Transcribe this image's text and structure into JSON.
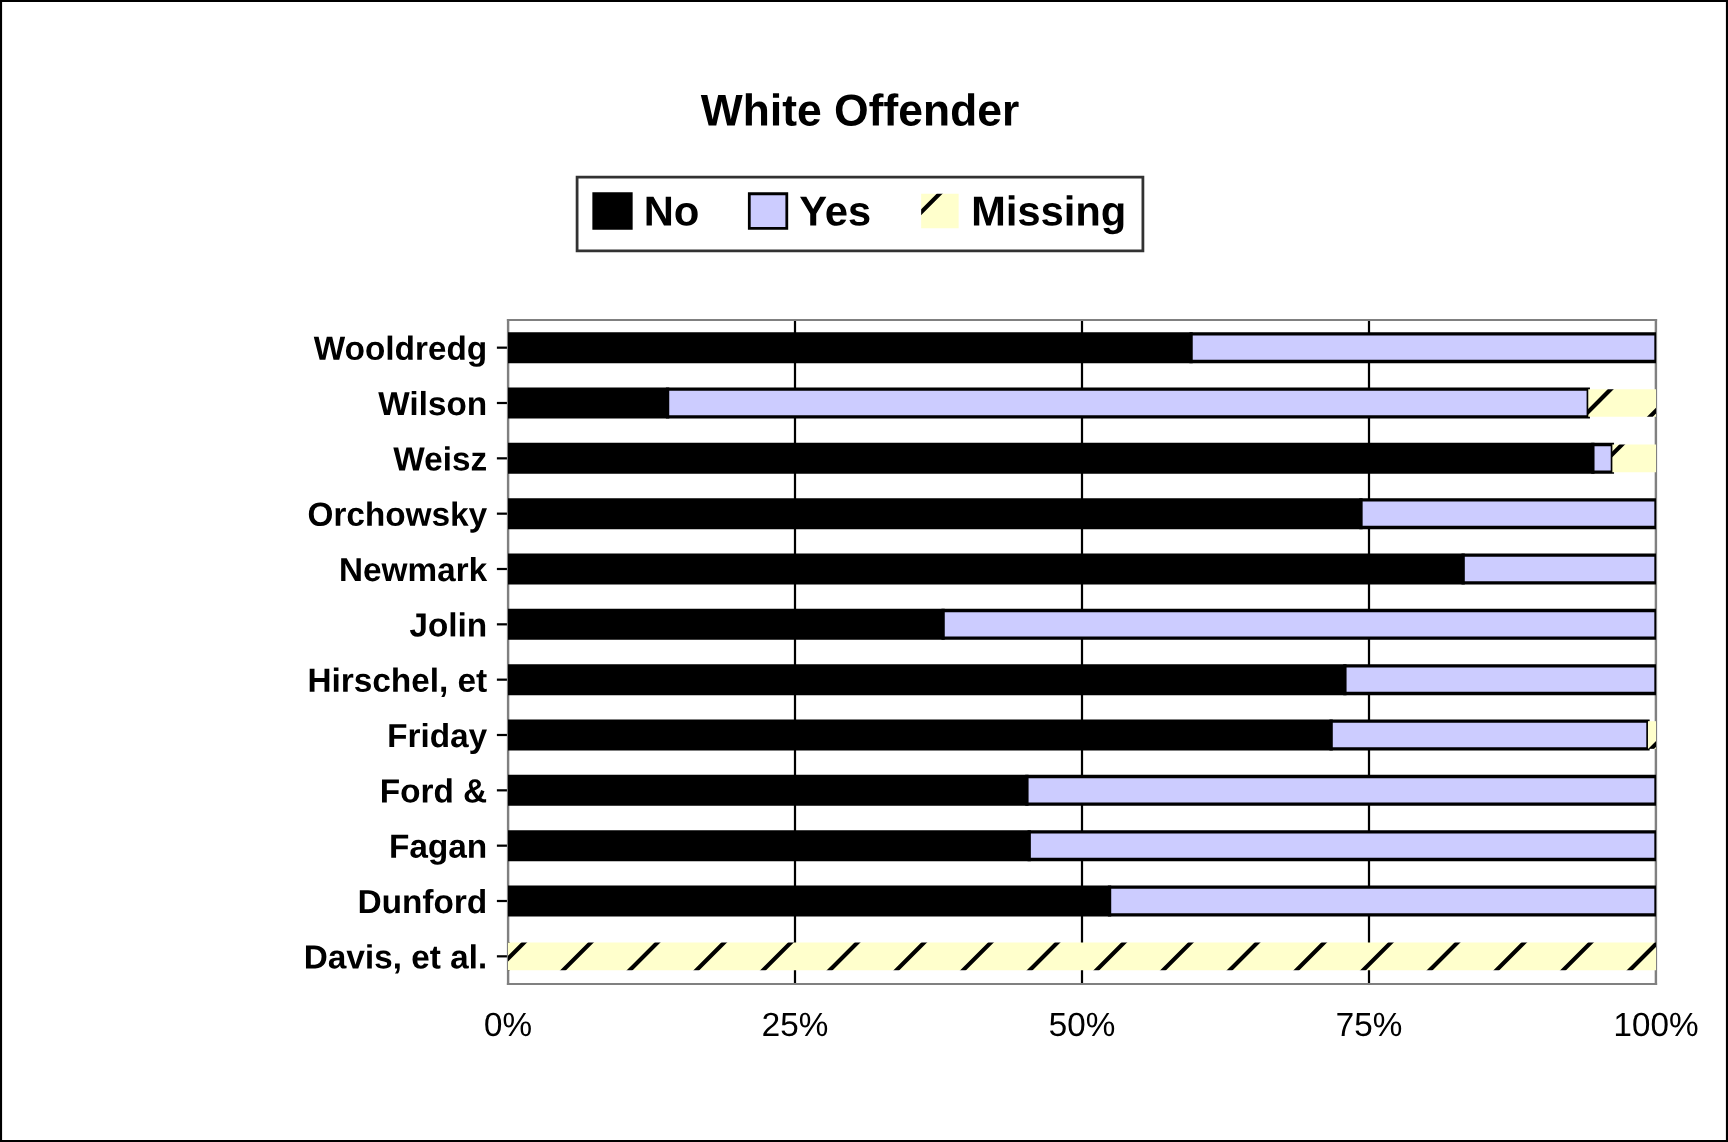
{
  "chart_data": {
    "type": "bar",
    "orientation": "horizontal",
    "stacked": true,
    "title": "White Offender",
    "categories": [
      "Wooldredg",
      "Wilson",
      "Weisz",
      "Orchowsky",
      "Newmark",
      "Jolin",
      "Hirschel, et",
      "Friday",
      "Ford &",
      "Fagan",
      "Dunford",
      "Davis, et al."
    ],
    "series": [
      {
        "name": "No",
        "color": "#000000",
        "values": [
          59.5,
          13.9,
          94.5,
          74.3,
          83.2,
          37.9,
          72.9,
          71.7,
          45.2,
          45.4,
          52.4,
          null
        ]
      },
      {
        "name": "Yes",
        "color": "#ccccff",
        "values": [
          40.5,
          80.2,
          1.7,
          25.7,
          16.8,
          62.1,
          27.1,
          27.6,
          54.8,
          54.6,
          47.6,
          null
        ]
      },
      {
        "name": "Missing",
        "color": "#ffffcc",
        "values": [
          null,
          5.9,
          3.8,
          null,
          null,
          null,
          null,
          0.7,
          null,
          null,
          null,
          100
        ]
      }
    ],
    "xlim": [
      0,
      100
    ],
    "xticks": [
      {
        "value": 0,
        "label": "0%"
      },
      {
        "value": 25,
        "label": "25%"
      },
      {
        "value": 50,
        "label": "50%"
      },
      {
        "value": 75,
        "label": "75%"
      },
      {
        "value": 100,
        "label": "100%"
      }
    ],
    "grid": "x",
    "legend": "top"
  }
}
